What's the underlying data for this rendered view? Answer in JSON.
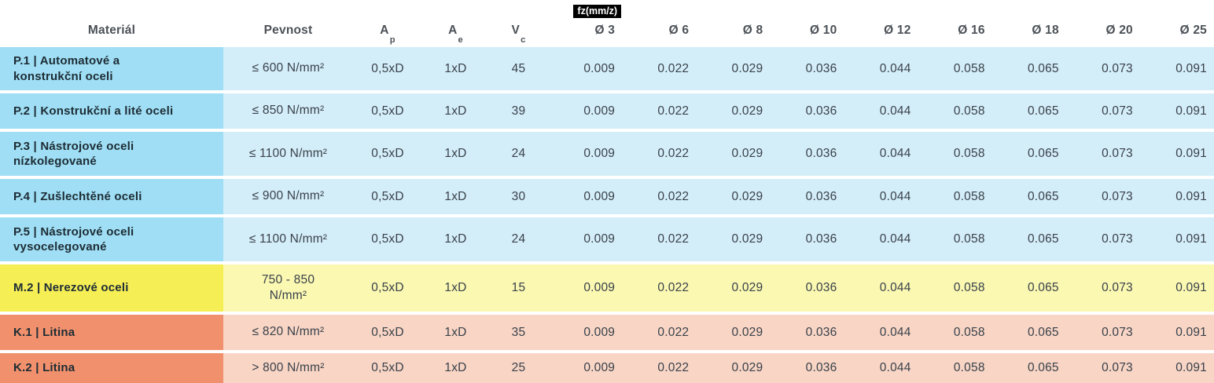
{
  "header": {
    "material": "Materiál",
    "pevnost": "Pevnost",
    "ap": {
      "base": "A",
      "sub": "p"
    },
    "ae": {
      "base": "A",
      "sub": "e"
    },
    "vc": {
      "base": "V",
      "sub": "c"
    },
    "fz_badge": "fz(mm/z)",
    "diameters": [
      "Ø 3",
      "Ø 6",
      "Ø 8",
      "Ø 10",
      "Ø 12",
      "Ø 16",
      "Ø 18",
      "Ø 20",
      "Ø 25"
    ]
  },
  "rows": [
    {
      "group": "P",
      "material": "P.1 | Automatové a\nkonstrukční oceli",
      "pevnost": "≤ 600 N/mm²",
      "ap": "0,5xD",
      "ae": "1xD",
      "vc": "45",
      "fz": [
        "0.009",
        "0.022",
        "0.029",
        "0.036",
        "0.044",
        "0.058",
        "0.065",
        "0.073",
        "0.091"
      ]
    },
    {
      "group": "P",
      "material": "P.2 | Konstrukční a lité oceli",
      "pevnost": "≤ 850 N/mm²",
      "ap": "0,5xD",
      "ae": "1xD",
      "vc": "39",
      "fz": [
        "0.009",
        "0.022",
        "0.029",
        "0.036",
        "0.044",
        "0.058",
        "0.065",
        "0.073",
        "0.091"
      ]
    },
    {
      "group": "P",
      "material": "P.3 | Nástrojové oceli\nnízkolegované",
      "pevnost": "≤ 1100 N/mm²",
      "ap": "0,5xD",
      "ae": "1xD",
      "vc": "24",
      "fz": [
        "0.009",
        "0.022",
        "0.029",
        "0.036",
        "0.044",
        "0.058",
        "0.065",
        "0.073",
        "0.091"
      ]
    },
    {
      "group": "P",
      "material": "P.4 | Zušlechtěné oceli",
      "pevnost": "≤ 900 N/mm²",
      "ap": "0,5xD",
      "ae": "1xD",
      "vc": "30",
      "fz": [
        "0.009",
        "0.022",
        "0.029",
        "0.036",
        "0.044",
        "0.058",
        "0.065",
        "0.073",
        "0.091"
      ]
    },
    {
      "group": "P",
      "material": "P.5 | Nástrojové oceli\nvysocelegované",
      "pevnost": "≤ 1100 N/mm²",
      "ap": "0,5xD",
      "ae": "1xD",
      "vc": "24",
      "fz": [
        "0.009",
        "0.022",
        "0.029",
        "0.036",
        "0.044",
        "0.058",
        "0.065",
        "0.073",
        "0.091"
      ]
    },
    {
      "group": "M",
      "material": "M.2 | Nerezové oceli",
      "pevnost": "750 - 850\nN/mm²",
      "ap": "0,5xD",
      "ae": "1xD",
      "vc": "15",
      "fz": [
        "0.009",
        "0.022",
        "0.029",
        "0.036",
        "0.044",
        "0.058",
        "0.065",
        "0.073",
        "0.091"
      ]
    },
    {
      "group": "K",
      "material": "K.1 | Litina",
      "pevnost": "≤ 820 N/mm²",
      "ap": "0,5xD",
      "ae": "1xD",
      "vc": "35",
      "fz": [
        "0.009",
        "0.022",
        "0.029",
        "0.036",
        "0.044",
        "0.058",
        "0.065",
        "0.073",
        "0.091"
      ]
    },
    {
      "group": "K",
      "material": "K.2 | Litina",
      "pevnost": "> 800 N/mm²",
      "ap": "0,5xD",
      "ae": "1xD",
      "vc": "25",
      "fz": [
        "0.009",
        "0.022",
        "0.029",
        "0.036",
        "0.044",
        "0.058",
        "0.065",
        "0.073",
        "0.091"
      ]
    }
  ],
  "colors": {
    "p_label_bg": "#9fdef4",
    "p_row_bg": "#d4eef9",
    "m_label_bg": "#f6ee55",
    "m_row_bg": "#fbf8b2",
    "k_label_bg": "#f1906c",
    "k_row_bg": "#f8d5c5",
    "header_text": "#4b5157",
    "material_text": "#1d2c35",
    "value_text": "#39414a",
    "badge_bg": "#000000",
    "badge_text": "#ffffff"
  }
}
